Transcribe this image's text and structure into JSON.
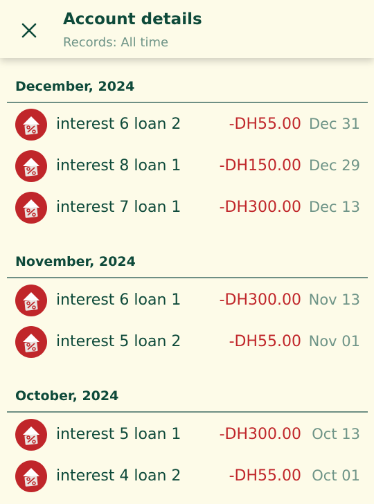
{
  "header": {
    "title": "Account details",
    "subtitle": "Records: All time",
    "close_icon": "close-icon"
  },
  "colors": {
    "background": "#FDFBE8",
    "primary_text": "#0E4A3A",
    "secondary_text": "#6E9487",
    "expense": "#C0262A",
    "icon_bg": "#C0262A"
  },
  "record_icon": "loan-interest-icon",
  "sections": [
    {
      "title": "December, 2024",
      "records": [
        {
          "name": "interest 6 loan 2",
          "amount": "-DH55.00",
          "date": "Dec 31"
        },
        {
          "name": "interest 8 loan 1",
          "amount": "-DH150.00",
          "date": "Dec 29"
        },
        {
          "name": "interest 7 loan 1",
          "amount": "-DH300.00",
          "date": "Dec 13"
        }
      ]
    },
    {
      "title": "November, 2024",
      "records": [
        {
          "name": "interest 6 loan 1",
          "amount": "-DH300.00",
          "date": "Nov 13"
        },
        {
          "name": "interest 5 loan 2",
          "amount": "-DH55.00",
          "date": "Nov 01"
        }
      ]
    },
    {
      "title": "October, 2024",
      "records": [
        {
          "name": "interest 5 loan 1",
          "amount": "-DH300.00",
          "date": "Oct 13"
        },
        {
          "name": "interest 4 loan 2",
          "amount": "-DH55.00",
          "date": "Oct 01"
        }
      ]
    }
  ]
}
